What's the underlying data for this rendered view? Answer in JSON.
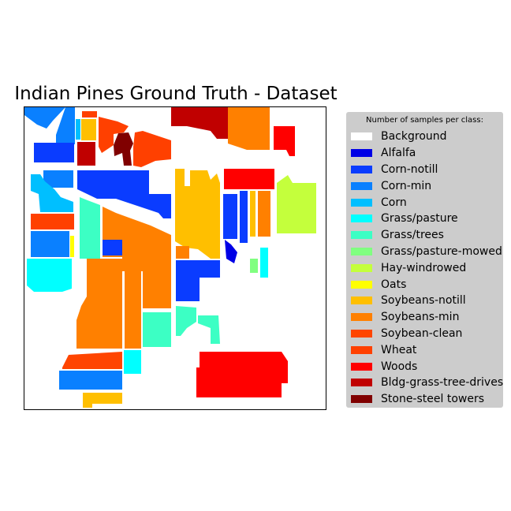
{
  "title": "Indian Pines Ground Truth - Dataset",
  "legend": {
    "title": "Number of samples per class:",
    "items": [
      {
        "label": "Background",
        "color": "#ffffff"
      },
      {
        "label": "Alfalfa",
        "color": "#0000e6"
      },
      {
        "label": "Corn-notill",
        "color": "#0a3cff"
      },
      {
        "label": "Corn-min",
        "color": "#0a80ff"
      },
      {
        "label": "Corn",
        "color": "#00bfff"
      },
      {
        "label": "Grass/pasture",
        "color": "#00ffff"
      },
      {
        "label": "Grass/trees",
        "color": "#3cffc4"
      },
      {
        "label": "Grass/pasture-mowed",
        "color": "#80ff80"
      },
      {
        "label": "Hay-windrowed",
        "color": "#c4ff3c"
      },
      {
        "label": "Oats",
        "color": "#ffff00"
      },
      {
        "label": "Soybeans-notill",
        "color": "#ffbf00"
      },
      {
        "label": "Soybeans-min",
        "color": "#ff8000"
      },
      {
        "label": "Soybean-clean",
        "color": "#ff4500"
      },
      {
        "label": "Wheat",
        "color": "#ff4000"
      },
      {
        "label": "Woods",
        "color": "#ff0000"
      },
      {
        "label": "Bldg-grass-tree-drives",
        "color": "#c00000"
      },
      {
        "label": "Stone-steel towers",
        "color": "#800000"
      }
    ]
  }
}
